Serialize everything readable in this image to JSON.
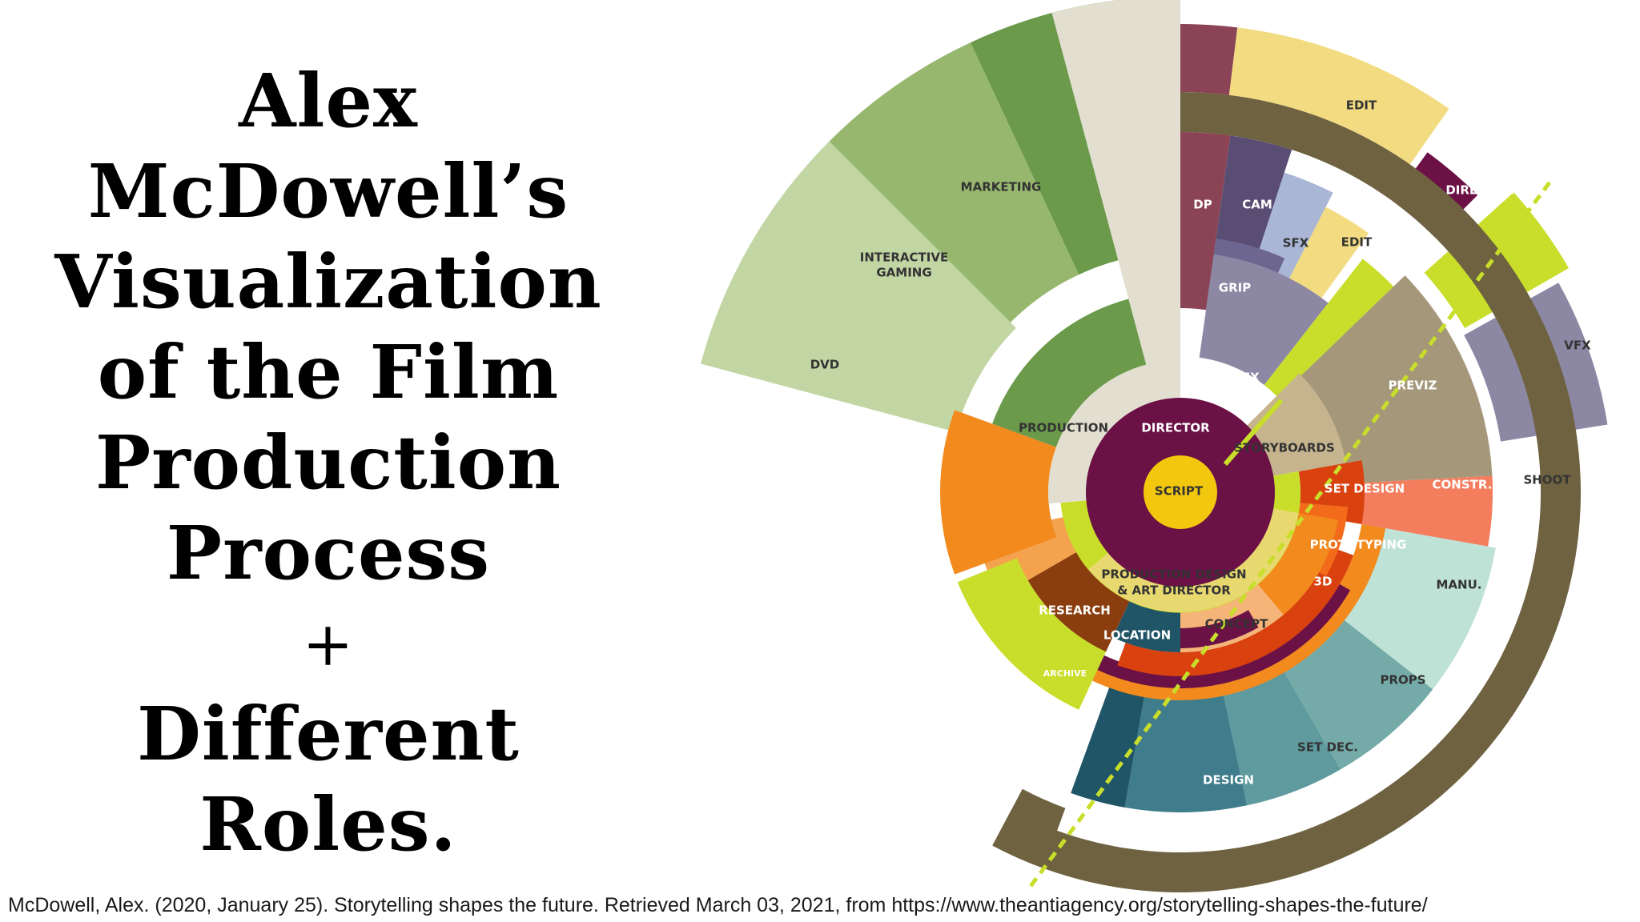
{
  "title": {
    "lines": [
      "Alex",
      "McDowell’s",
      "Visualization",
      "of the Film",
      "Production",
      "Process",
      "+",
      "Different",
      "Roles."
    ]
  },
  "citation": "McDowell, Alex. (2020, January 25). Storytelling shapes the future. Retrieved March 03, 2021, from https://www.theantiagency.org/storytelling-shapes-the-future/",
  "diagram": {
    "colors": {
      "olive": "#6e6241",
      "plum": "#6b1146",
      "yellow": "#f2c80f",
      "lime": "#c8de2a",
      "beige": "#e2dfd1",
      "tan": "#a5977a",
      "orange": "#f28a1e",
      "peach": "#f5b478",
      "teal_dark": "#1f5566",
      "teal": "#3f7c8c",
      "teal_light": "#74aaa8",
      "mint": "#bfe2d6",
      "salmon": "#f47d5e",
      "red_orange": "#d9420f",
      "brown": "#8a3d0e",
      "green_dark": "#6a9a4a",
      "green_mid": "#96b76d",
      "green_light": "#c2d6a4",
      "lavender": "#8c88a4",
      "rose": "#8b4456",
      "sand": "#f2db80"
    },
    "labels": {
      "script": "SCRIPT",
      "director_center": "DIRECTOR",
      "production": "PRODUCTION",
      "storyboards": "STORYBOARDS",
      "production_design_1": "PRODUCTION DESIGN",
      "production_design_2": "& ART DIRECTOR",
      "research": "RESEARCH",
      "location": "LOCATION",
      "concept": "CONCEPT",
      "archive": "ARCHIVE",
      "previz": "PREVIZ",
      "set_design": "SET DESIGN",
      "constr": "CONSTR.",
      "prototyping": "PROTOTYPING",
      "three_d": "3D",
      "manu": "MANU.",
      "props": "PROPS",
      "set_dec": "SET DEC.",
      "design": "DESIGN",
      "shoot": "SHOOT",
      "edit_outer": "EDIT",
      "director_outer": "DIRECTOR",
      "vfx_outer": "VFX",
      "dp": "DP",
      "cam": "CAM",
      "sfx": "SFX",
      "edit_inner": "EDIT",
      "grip": "GRIP",
      "vfx_inner": "VFX",
      "marketing": "MARKETING",
      "interactive_1": "INTERACTIVE",
      "interactive_2": "GAMING",
      "dvd": "DVD"
    }
  }
}
